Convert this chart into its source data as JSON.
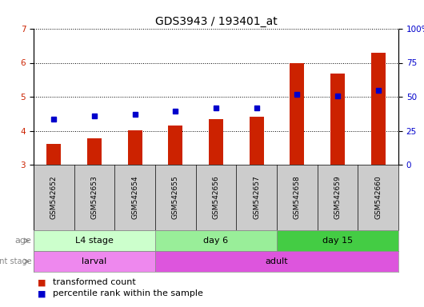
{
  "title": "GDS3943 / 193401_at",
  "samples": [
    "GSM542652",
    "GSM542653",
    "GSM542654",
    "GSM542655",
    "GSM542656",
    "GSM542657",
    "GSM542658",
    "GSM542659",
    "GSM542660"
  ],
  "transformed_counts": [
    3.62,
    3.78,
    4.02,
    4.15,
    4.35,
    4.42,
    5.98,
    5.68,
    6.3
  ],
  "percentile_ranks": [
    4.35,
    4.44,
    4.48,
    4.57,
    4.67,
    4.67,
    5.08,
    5.02,
    5.18
  ],
  "ylim_left": [
    3.0,
    7.0
  ],
  "ylim_right": [
    0,
    100
  ],
  "yticks_left": [
    3,
    4,
    5,
    6,
    7
  ],
  "yticks_right": [
    0,
    25,
    50,
    75,
    100
  ],
  "ytick_labels_right": [
    "0",
    "25",
    "50",
    "75",
    "100%"
  ],
  "bar_color": "#cc2200",
  "dot_color": "#0000cc",
  "bar_bottom": 3.0,
  "age_groups": [
    {
      "label": "L4 stage",
      "start": 0,
      "end": 3,
      "color": "#ccffcc"
    },
    {
      "label": "day 6",
      "start": 3,
      "end": 6,
      "color": "#99ee99"
    },
    {
      "label": "day 15",
      "start": 6,
      "end": 9,
      "color": "#44cc44"
    }
  ],
  "dev_groups": [
    {
      "label": "larval",
      "start": 0,
      "end": 3,
      "color": "#ee88ee"
    },
    {
      "label": "adult",
      "start": 3,
      "end": 9,
      "color": "#dd55dd"
    }
  ],
  "legend_items": [
    {
      "label": "transformed count",
      "color": "#cc2200"
    },
    {
      "label": "percentile rank within the sample",
      "color": "#0000cc"
    }
  ],
  "background_color": "#ffffff",
  "grid_color": "#000000",
  "title_fontsize": 10,
  "tick_fontsize": 7.5,
  "sample_fontsize": 6.5,
  "row_label_fontsize": 8,
  "row_content_fontsize": 8,
  "legend_fontsize": 8
}
